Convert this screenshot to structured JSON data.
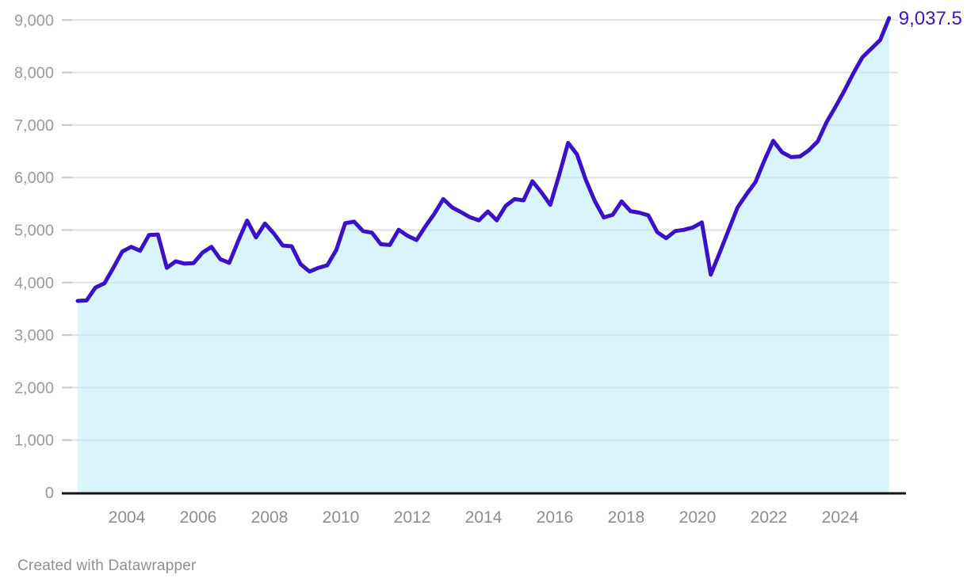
{
  "page": {
    "background": "#ffffff"
  },
  "footer": {
    "text": "Created with Datawrapper"
  },
  "chart_data": {
    "type": "area",
    "title": "",
    "xlabel": "",
    "ylabel": "",
    "x_start_year": 2002.622,
    "x_step_years": 0.25,
    "values": [
      3650,
      3660,
      3905,
      3985,
      4280,
      4590,
      4680,
      4605,
      4905,
      4915,
      4280,
      4405,
      4360,
      4370,
      4570,
      4680,
      4445,
      4375,
      4790,
      5180,
      4860,
      5125,
      4935,
      4705,
      4690,
      4350,
      4210,
      4280,
      4330,
      4620,
      5130,
      5160,
      4980,
      4950,
      4730,
      4715,
      5005,
      4890,
      4810,
      5070,
      5310,
      5590,
      5430,
      5340,
      5245,
      5185,
      5355,
      5185,
      5460,
      5590,
      5565,
      5930,
      5720,
      5480,
      6050,
      6660,
      6440,
      5950,
      5550,
      5240,
      5290,
      5545,
      5360,
      5330,
      5280,
      4960,
      4845,
      4980,
      5005,
      5050,
      5145,
      4150,
      4570,
      5000,
      5430,
      5680,
      5910,
      6320,
      6700,
      6480,
      6390,
      6400,
      6520,
      6690,
      7060,
      7350,
      7660,
      7990,
      8290,
      8455,
      8620,
      9037.5
    ],
    "last_value": 9037.5,
    "last_value_label": "9,037.5",
    "y_ticks": [
      0,
      1000,
      2000,
      3000,
      4000,
      5000,
      6000,
      7000,
      8000,
      9000
    ],
    "x_ticks": [
      2004,
      2006,
      2008,
      2010,
      2012,
      2014,
      2016,
      2018,
      2020,
      2022,
      2024
    ],
    "ylim": [
      0,
      9300
    ],
    "grid": true,
    "legend": "none",
    "colors": {
      "line": "#3a10c8",
      "area": "#baebf8",
      "area_opacity": 0.55,
      "last_value_label": "#4013cd",
      "axis": "#151515",
      "grid": "#e2e2e2",
      "grid_tick": "#c9c9c9",
      "y_tick_text": "#9b9b9b",
      "x_tick_text": "#8d8d8d"
    }
  }
}
